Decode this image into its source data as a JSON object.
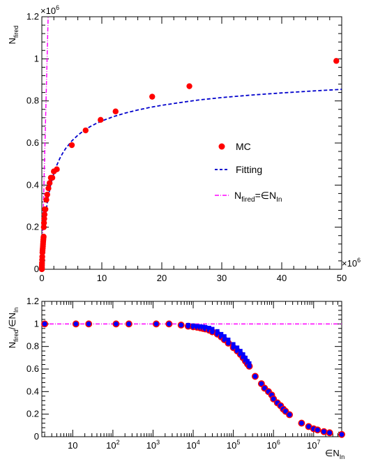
{
  "colors": {
    "mc": "#ff0000",
    "fit": "#0000cc",
    "line": "#ff00ff",
    "ratio_fill": "#0000ff",
    "ratio_edge": "#ff0000"
  },
  "chart_data": [
    {
      "type": "scatter",
      "xlim": [
        0,
        50
      ],
      "ylim": [
        0,
        1.2
      ],
      "ylabel_main": "N",
      "ylabel_sub": "fired",
      "y_exponent": "×10",
      "y_exponent_power": "6",
      "x_exponent": "×10",
      "x_exponent_power": "6",
      "x_ticks": [
        0,
        10,
        20,
        30,
        40,
        50
      ],
      "x_tick_labels": [
        "0",
        "10",
        "20",
        "30",
        "40",
        "50"
      ],
      "y_ticks": [
        0,
        0.2,
        0.4,
        0.6,
        0.8,
        1.0,
        1.2
      ],
      "y_tick_labels": [
        "0",
        "0.2",
        "0.4",
        "0.6",
        "0.8",
        "1",
        "1.2"
      ],
      "legend": {
        "position": "right-center",
        "mc_label": "MC",
        "fit_label": "Fitting",
        "line_label_main": "N",
        "line_label_sub": "fired",
        "line_label_mid": "=∈N",
        "line_label_sub2": "In"
      },
      "series": [
        {
          "name": "MC",
          "x": [
            0.0005,
            0.001,
            0.003,
            0.005,
            0.01,
            0.02,
            0.03,
            0.05,
            0.07,
            0.1,
            0.12,
            0.15,
            0.18,
            0.2,
            0.22,
            0.25,
            0.28,
            0.3,
            0.33,
            0.36,
            0.4,
            0.45,
            0.5,
            0.6,
            0.75,
            0.9,
            1.1,
            1.3,
            1.5,
            1.75,
            2.0,
            2.5,
            5.0,
            7.3,
            9.8,
            12.3,
            18.4,
            24.6,
            49.1
          ],
          "y": [
            0.0005,
            0.001,
            0.003,
            0.005,
            0.01,
            0.02,
            0.03,
            0.045,
            0.06,
            0.08,
            0.09,
            0.1,
            0.11,
            0.12,
            0.13,
            0.14,
            0.15,
            0.155,
            0.2,
            0.22,
            0.24,
            0.26,
            0.285,
            0.285,
            0.33,
            0.355,
            0.385,
            0.41,
            0.435,
            0.435,
            0.465,
            0.475,
            0.59,
            0.66,
            0.71,
            0.75,
            0.82,
            0.87,
            0.99
          ]
        },
        {
          "name": "Fitting",
          "x": [
            0.5,
            1.0,
            1.5,
            2.0,
            2.5,
            3.0,
            3.5,
            4.0,
            5.0,
            6.0,
            7.0,
            8.0,
            9.0,
            10.0,
            12.0,
            14.0,
            16.0,
            18.0,
            20.0,
            23.0,
            26.0,
            30.0,
            35.0,
            40.0,
            45.0,
            50.0
          ],
          "y": [
            0.235,
            0.335,
            0.405,
            0.455,
            0.495,
            0.527,
            0.553,
            0.575,
            0.61,
            0.637,
            0.659,
            0.677,
            0.692,
            0.705,
            0.726,
            0.743,
            0.757,
            0.769,
            0.779,
            0.792,
            0.804,
            0.816,
            0.828,
            0.838,
            0.847,
            0.855
          ]
        },
        {
          "name": "line",
          "x": [
            0,
            1.05
          ],
          "y": [
            0,
            1.2
          ]
        }
      ]
    },
    {
      "type": "scatter",
      "x_scale": "log",
      "xlim": [
        1.7,
        50000000
      ],
      "ylim": [
        0,
        1.2
      ],
      "ylabel_main": "N",
      "ylabel_sub": "fired",
      "ylabel_mid": "/∈N",
      "ylabel_sub2": "In",
      "xlabel_main": "∈N",
      "xlabel_sub": "In",
      "reference_y": 1.0,
      "x_tick_labels": [
        {
          "base": "10",
          "power": ""
        },
        {
          "base": "10",
          "power": "2"
        },
        {
          "base": "10",
          "power": "3"
        },
        {
          "base": "10",
          "power": "4"
        },
        {
          "base": "10",
          "power": "5"
        },
        {
          "base": "10",
          "power": "6"
        },
        {
          "base": "10",
          "power": "7"
        }
      ],
      "y_ticks": [
        0,
        0.2,
        0.4,
        0.6,
        0.8,
        1.0,
        1.2
      ],
      "y_tick_labels": [
        "0",
        "0.2",
        "0.4",
        "0.6",
        "0.8",
        "1",
        "1.2"
      ],
      "series": [
        {
          "name": "ratio_mc",
          "x": [
            2,
            12,
            25,
            120,
            250,
            1200,
            2500,
            5000,
            7500,
            10000,
            12500,
            15000,
            17500,
            20000,
            25000,
            30000,
            40000,
            50000,
            60000,
            75000,
            100000,
            125000,
            150000,
            175000,
            200000,
            225000,
            250000,
            350000,
            500000,
            600000,
            750000,
            900000,
            1000000,
            1250000,
            1500000,
            1750000,
            2000000,
            2500000,
            5000000,
            7500000,
            10000000,
            12500000,
            18000000,
            25000000,
            50000000
          ],
          "y": [
            1.0,
            1.0,
            1.0,
            1.0,
            1.0,
            1.0,
            1.0,
            0.99,
            0.98,
            0.975,
            0.97,
            0.965,
            0.96,
            0.955,
            0.945,
            0.93,
            0.91,
            0.885,
            0.86,
            0.83,
            0.79,
            0.76,
            0.73,
            0.7,
            0.67,
            0.645,
            0.625,
            0.535,
            0.47,
            0.43,
            0.4,
            0.37,
            0.335,
            0.3,
            0.275,
            0.245,
            0.225,
            0.195,
            0.12,
            0.09,
            0.07,
            0.06,
            0.045,
            0.035,
            0.02
          ]
        },
        {
          "name": "ratio_fit",
          "x": [
            7500,
            10000,
            12500,
            15000,
            17500,
            20000,
            25000,
            30000,
            40000,
            50000,
            60000,
            75000,
            100000,
            125000,
            150000,
            175000,
            200000,
            225000,
            250000
          ],
          "y": [
            0.99,
            0.985,
            0.98,
            0.978,
            0.975,
            0.972,
            0.965,
            0.955,
            0.935,
            0.91,
            0.89,
            0.86,
            0.82,
            0.79,
            0.76,
            0.73,
            0.7,
            0.67,
            0.65
          ]
        }
      ]
    }
  ]
}
